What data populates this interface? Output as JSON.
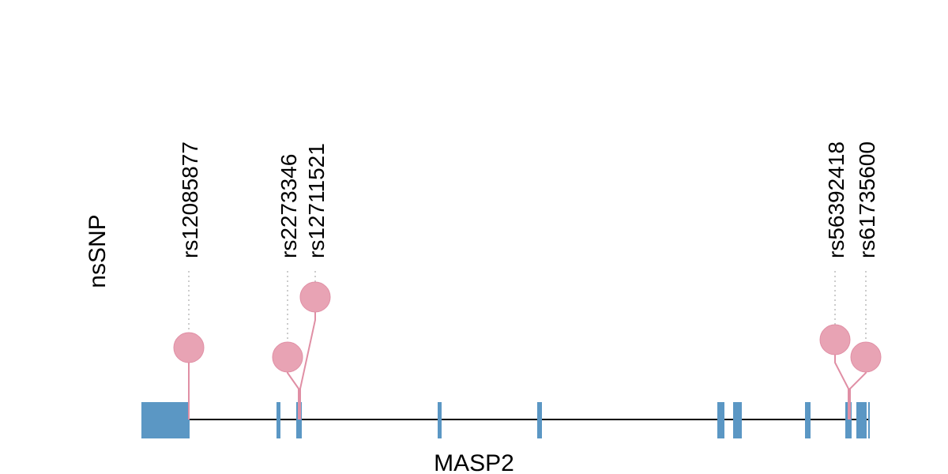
{
  "track_label": "nsSNP",
  "gene": {
    "name": "MASP2",
    "exon_color": "#5b97c4",
    "line_color": "#000000",
    "exons": [
      {
        "start": 0,
        "end": 61
      },
      {
        "start": 171,
        "end": 176
      },
      {
        "start": 196,
        "end": 203
      },
      {
        "start": 375,
        "end": 380
      },
      {
        "start": 501,
        "end": 507
      },
      {
        "start": 729,
        "end": 738
      },
      {
        "start": 749,
        "end": 760
      },
      {
        "start": 840,
        "end": 847
      },
      {
        "start": 891,
        "end": 899
      },
      {
        "start": 905,
        "end": 918
      },
      {
        "start": 920,
        "end": 922
      }
    ],
    "length": 922
  },
  "snps": [
    {
      "id": "rs12085877",
      "pos": 60,
      "height": 1
    },
    {
      "id": "rs2273346",
      "pos": 199,
      "height": 1
    },
    {
      "id": "rs12711521",
      "pos": 201,
      "height": 2
    },
    {
      "id": "rs56392418",
      "pos": 895,
      "height": 1
    },
    {
      "id": "rs61735600",
      "pos": 897,
      "height": 1
    }
  ],
  "colors": {
    "lollipop_fill": "#e8a3b4",
    "lollipop_stroke": "#e08fa5",
    "stem": "#e08fa5",
    "guide": "#bbbbbb"
  }
}
